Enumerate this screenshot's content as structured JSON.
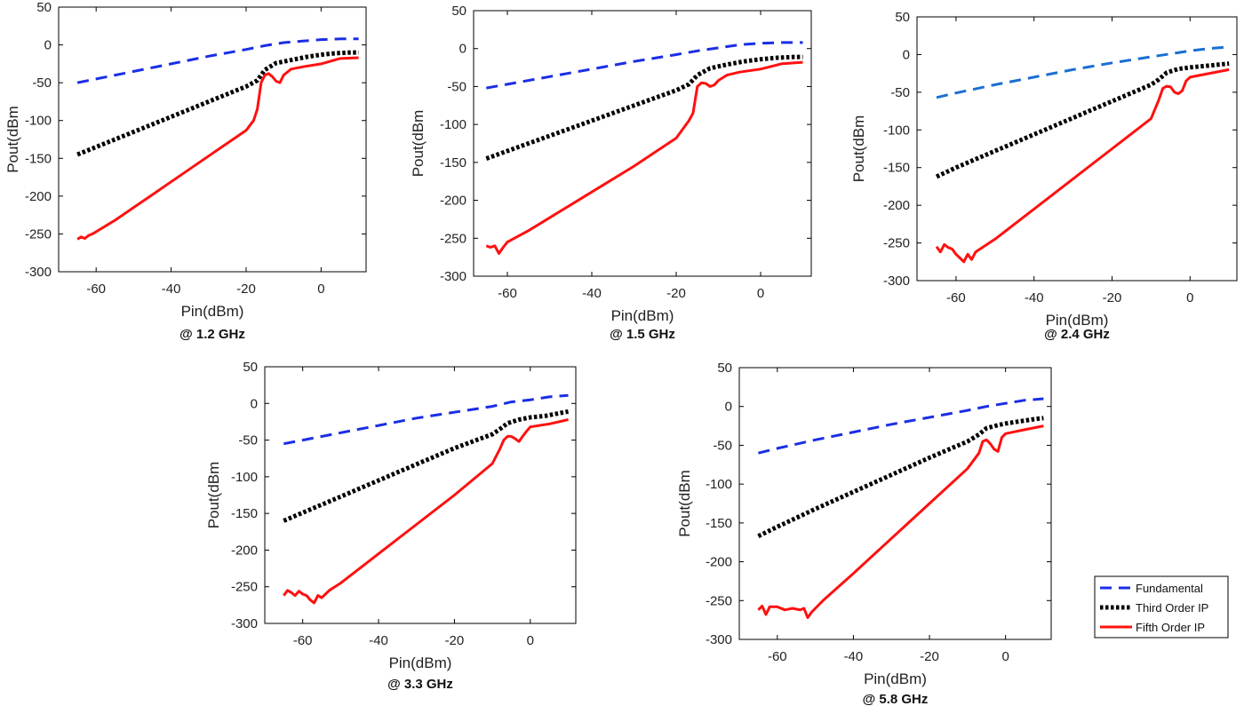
{
  "chart_data": [
    {
      "type": "line",
      "title": "@ 1.2 GHz",
      "xlabel": "Pin(dBm)",
      "ylabel": "Pout(dBm",
      "xlim": [
        -70,
        12
      ],
      "ylim": [
        -300,
        50
      ],
      "xticks": [
        -60,
        -40,
        -20,
        0
      ],
      "yticks": [
        50,
        0,
        -50,
        -100,
        -150,
        -200,
        -250,
        -300
      ],
      "series": [
        {
          "name": "Fundamental",
          "color": "#1a2ee6",
          "style": "dashed",
          "x": [
            -65,
            -60,
            -50,
            -40,
            -30,
            -20,
            -15,
            -10,
            -5,
            0,
            5,
            10
          ],
          "y": [
            -50,
            -45,
            -35,
            -25,
            -15,
            -6,
            -1,
            3,
            5,
            7,
            8,
            8
          ]
        },
        {
          "name": "Third Order IP",
          "color": "#000000",
          "style": "dotted",
          "x": [
            -65,
            -60,
            -50,
            -40,
            -30,
            -20,
            -17,
            -15,
            -12,
            -8,
            -4,
            0,
            4,
            8,
            10
          ],
          "y": [
            -145,
            -135,
            -115,
            -95,
            -75,
            -55,
            -47,
            -33,
            -24,
            -20,
            -16,
            -13,
            -11,
            -10,
            -10
          ]
        },
        {
          "name": "Fifth Order IP",
          "color": "#ff1010",
          "style": "solid",
          "x": [
            -65,
            -64,
            -63,
            -62,
            -61,
            -60,
            -55,
            -50,
            -45,
            -40,
            -30,
            -20,
            -18,
            -17,
            -16,
            -15,
            -14,
            -13,
            -12,
            -11,
            -10,
            -8,
            -5,
            0,
            5,
            10
          ],
          "y": [
            -257,
            -254,
            -256,
            -252,
            -250,
            -247,
            -232,
            -215,
            -198,
            -181,
            -147,
            -113,
            -100,
            -85,
            -50,
            -40,
            -38,
            -42,
            -48,
            -50,
            -40,
            -32,
            -29,
            -25,
            -18,
            -17
          ]
        }
      ]
    },
    {
      "type": "line",
      "title": "@ 1.5 GHz",
      "xlabel": "Pin(dBm)",
      "ylabel": "Pout(dBm",
      "xlim": [
        -68,
        12
      ],
      "ylim": [
        -300,
        50
      ],
      "xticks": [
        -60,
        -40,
        -20,
        0
      ],
      "yticks": [
        50,
        0,
        -50,
        -100,
        -150,
        -200,
        -250,
        -300
      ],
      "series": [
        {
          "name": "Fundamental",
          "color": "#1a2ee6",
          "style": "dashed",
          "x": [
            -65,
            -60,
            -50,
            -40,
            -30,
            -20,
            -15,
            -10,
            -5,
            0,
            5,
            10
          ],
          "y": [
            -52,
            -47,
            -37,
            -27,
            -17,
            -8,
            -3,
            1,
            5,
            7,
            8,
            8
          ]
        },
        {
          "name": "Third Order IP",
          "color": "#000000",
          "style": "dotted",
          "x": [
            -65,
            -60,
            -50,
            -40,
            -30,
            -20,
            -17,
            -15,
            -12,
            -8,
            -4,
            0,
            4,
            8,
            10
          ],
          "y": [
            -145,
            -135,
            -115,
            -95,
            -75,
            -55,
            -47,
            -35,
            -26,
            -21,
            -17,
            -14,
            -12,
            -11,
            -11
          ]
        },
        {
          "name": "Fifth Order IP",
          "color": "#ff1010",
          "style": "solid",
          "x": [
            -65,
            -64,
            -63,
            -62,
            -61,
            -60,
            -55,
            -50,
            -45,
            -40,
            -30,
            -20,
            -17,
            -16,
            -15,
            -14,
            -13,
            -12,
            -11,
            -10,
            -8,
            -5,
            0,
            5,
            10
          ],
          "y": [
            -260,
            -262,
            -260,
            -270,
            -262,
            -255,
            -240,
            -223,
            -206,
            -189,
            -155,
            -118,
            -95,
            -85,
            -50,
            -45,
            -46,
            -50,
            -48,
            -42,
            -35,
            -31,
            -27,
            -20,
            -18
          ]
        }
      ]
    },
    {
      "type": "line",
      "title": "@ 2.4 GHz",
      "xlabel": "Pin(dBm)",
      "ylabel": "Pout(dBm",
      "xlim": [
        -70,
        12
      ],
      "ylim": [
        -300,
        50
      ],
      "xticks": [
        -60,
        -40,
        -20,
        0
      ],
      "yticks": [
        50,
        0,
        -50,
        -100,
        -150,
        -200,
        -250,
        -300
      ],
      "series": [
        {
          "name": "Fundamental",
          "color": "#1a6fd0",
          "style": "dashed",
          "x": [
            -65,
            -60,
            -50,
            -40,
            -30,
            -20,
            -10,
            -5,
            0,
            5,
            10
          ],
          "y": [
            -57,
            -51,
            -40,
            -30,
            -20,
            -11,
            -3,
            1,
            5,
            8,
            10
          ]
        },
        {
          "name": "Third Order IP",
          "color": "#000000",
          "style": "dotted",
          "x": [
            -65,
            -60,
            -50,
            -40,
            -30,
            -20,
            -10,
            -8,
            -6,
            -3,
            0,
            4,
            8,
            10
          ],
          "y": [
            -162,
            -150,
            -128,
            -106,
            -84,
            -62,
            -40,
            -33,
            -24,
            -19,
            -17,
            -15,
            -13,
            -12
          ]
        },
        {
          "name": "Fifth Order IP",
          "color": "#ff1010",
          "style": "solid",
          "x": [
            -65,
            -64,
            -63,
            -62,
            -61,
            -60,
            -59,
            -58,
            -57,
            -56,
            -55,
            -50,
            -40,
            -30,
            -20,
            -10,
            -8,
            -7,
            -6,
            -5,
            -4,
            -3,
            -2,
            -1,
            0,
            5,
            10
          ],
          "y": [
            -255,
            -262,
            -252,
            -256,
            -258,
            -265,
            -270,
            -275,
            -265,
            -272,
            -262,
            -245,
            -205,
            -165,
            -125,
            -85,
            -60,
            -45,
            -42,
            -43,
            -50,
            -52,
            -48,
            -35,
            -30,
            -25,
            -20
          ]
        }
      ]
    },
    {
      "type": "line",
      "title": "@ 3.3 GHz",
      "xlabel": "Pin(dBm)",
      "ylabel": "Pout(dBm",
      "xlim": [
        -70,
        12
      ],
      "ylim": [
        -300,
        50
      ],
      "xticks": [
        -60,
        -40,
        -20,
        0
      ],
      "yticks": [
        50,
        0,
        -50,
        -100,
        -150,
        -200,
        -250,
        -300
      ],
      "series": [
        {
          "name": "Fundamental",
          "color": "#1a2ee6",
          "style": "dashed",
          "x": [
            -65,
            -60,
            -50,
            -40,
            -30,
            -20,
            -10,
            -5,
            0,
            5,
            10
          ],
          "y": [
            -55,
            -50,
            -40,
            -30,
            -20,
            -12,
            -4,
            2,
            5,
            9,
            11
          ]
        },
        {
          "name": "Third Order IP",
          "color": "#000000",
          "style": "dotted",
          "x": [
            -65,
            -60,
            -50,
            -40,
            -30,
            -20,
            -10,
            -8,
            -6,
            -3,
            0,
            4,
            8,
            10
          ],
          "y": [
            -160,
            -149,
            -127,
            -105,
            -83,
            -61,
            -42,
            -35,
            -27,
            -22,
            -19,
            -17,
            -13,
            -11
          ]
        },
        {
          "name": "Fifth Order IP",
          "color": "#ff1010",
          "style": "solid",
          "x": [
            -65,
            -64,
            -63,
            -62,
            -61,
            -60,
            -59,
            -58,
            -57,
            -56,
            -55,
            -54,
            -53,
            -50,
            -40,
            -30,
            -20,
            -10,
            -8,
            -7,
            -6,
            -5,
            -4,
            -3,
            -2,
            -1,
            0,
            5,
            10
          ],
          "y": [
            -262,
            -255,
            -258,
            -262,
            -256,
            -260,
            -262,
            -268,
            -272,
            -262,
            -265,
            -260,
            -255,
            -245,
            -205,
            -165,
            -125,
            -82,
            -62,
            -50,
            -45,
            -45,
            -48,
            -52,
            -45,
            -38,
            -32,
            -28,
            -22
          ]
        }
      ]
    },
    {
      "type": "line",
      "title": "@ 5.8 GHz",
      "xlabel": "Pin(dBm)",
      "ylabel": "Pout(dBm",
      "xlim": [
        -70,
        12
      ],
      "ylim": [
        -300,
        50
      ],
      "xticks": [
        -60,
        -40,
        -20,
        0
      ],
      "yticks": [
        50,
        0,
        -50,
        -100,
        -150,
        -200,
        -250,
        -300
      ],
      "series": [
        {
          "name": "Fundamental",
          "color": "#1a2ee6",
          "style": "dashed",
          "x": [
            -65,
            -60,
            -50,
            -40,
            -30,
            -20,
            -10,
            -5,
            0,
            5,
            10
          ],
          "y": [
            -60,
            -54,
            -43,
            -33,
            -23,
            -14,
            -5,
            0,
            4,
            8,
            10
          ]
        },
        {
          "name": "Third Order IP",
          "color": "#000000",
          "style": "dotted",
          "x": [
            -65,
            -60,
            -50,
            -40,
            -30,
            -20,
            -10,
            -7,
            -5,
            -2,
            0,
            4,
            8,
            10
          ],
          "y": [
            -167,
            -155,
            -132,
            -110,
            -88,
            -66,
            -45,
            -36,
            -28,
            -24,
            -22,
            -19,
            -16,
            -15
          ]
        },
        {
          "name": "Fifth Order IP",
          "color": "#ff1010",
          "style": "solid",
          "x": [
            -65,
            -64,
            -63,
            -62,
            -60,
            -58,
            -56,
            -54,
            -53,
            -52,
            -51,
            -50,
            -48,
            -40,
            -30,
            -20,
            -10,
            -7,
            -6,
            -5,
            -4,
            -3,
            -2,
            -1,
            0,
            5,
            10
          ],
          "y": [
            -262,
            -257,
            -268,
            -258,
            -258,
            -262,
            -260,
            -262,
            -260,
            -272,
            -265,
            -260,
            -250,
            -215,
            -170,
            -125,
            -80,
            -60,
            -45,
            -43,
            -48,
            -55,
            -58,
            -40,
            -35,
            -30,
            -25
          ]
        }
      ]
    }
  ],
  "legend": {
    "placement": "bottom-right",
    "entries": [
      {
        "label": "Fundamental",
        "color": "#1a2ee6",
        "style": "dashed"
      },
      {
        "label": "Third Order IP",
        "color": "#000000",
        "style": "dotted"
      },
      {
        "label": "Fifth Order IP",
        "color": "#ff1010",
        "style": "solid"
      }
    ]
  }
}
